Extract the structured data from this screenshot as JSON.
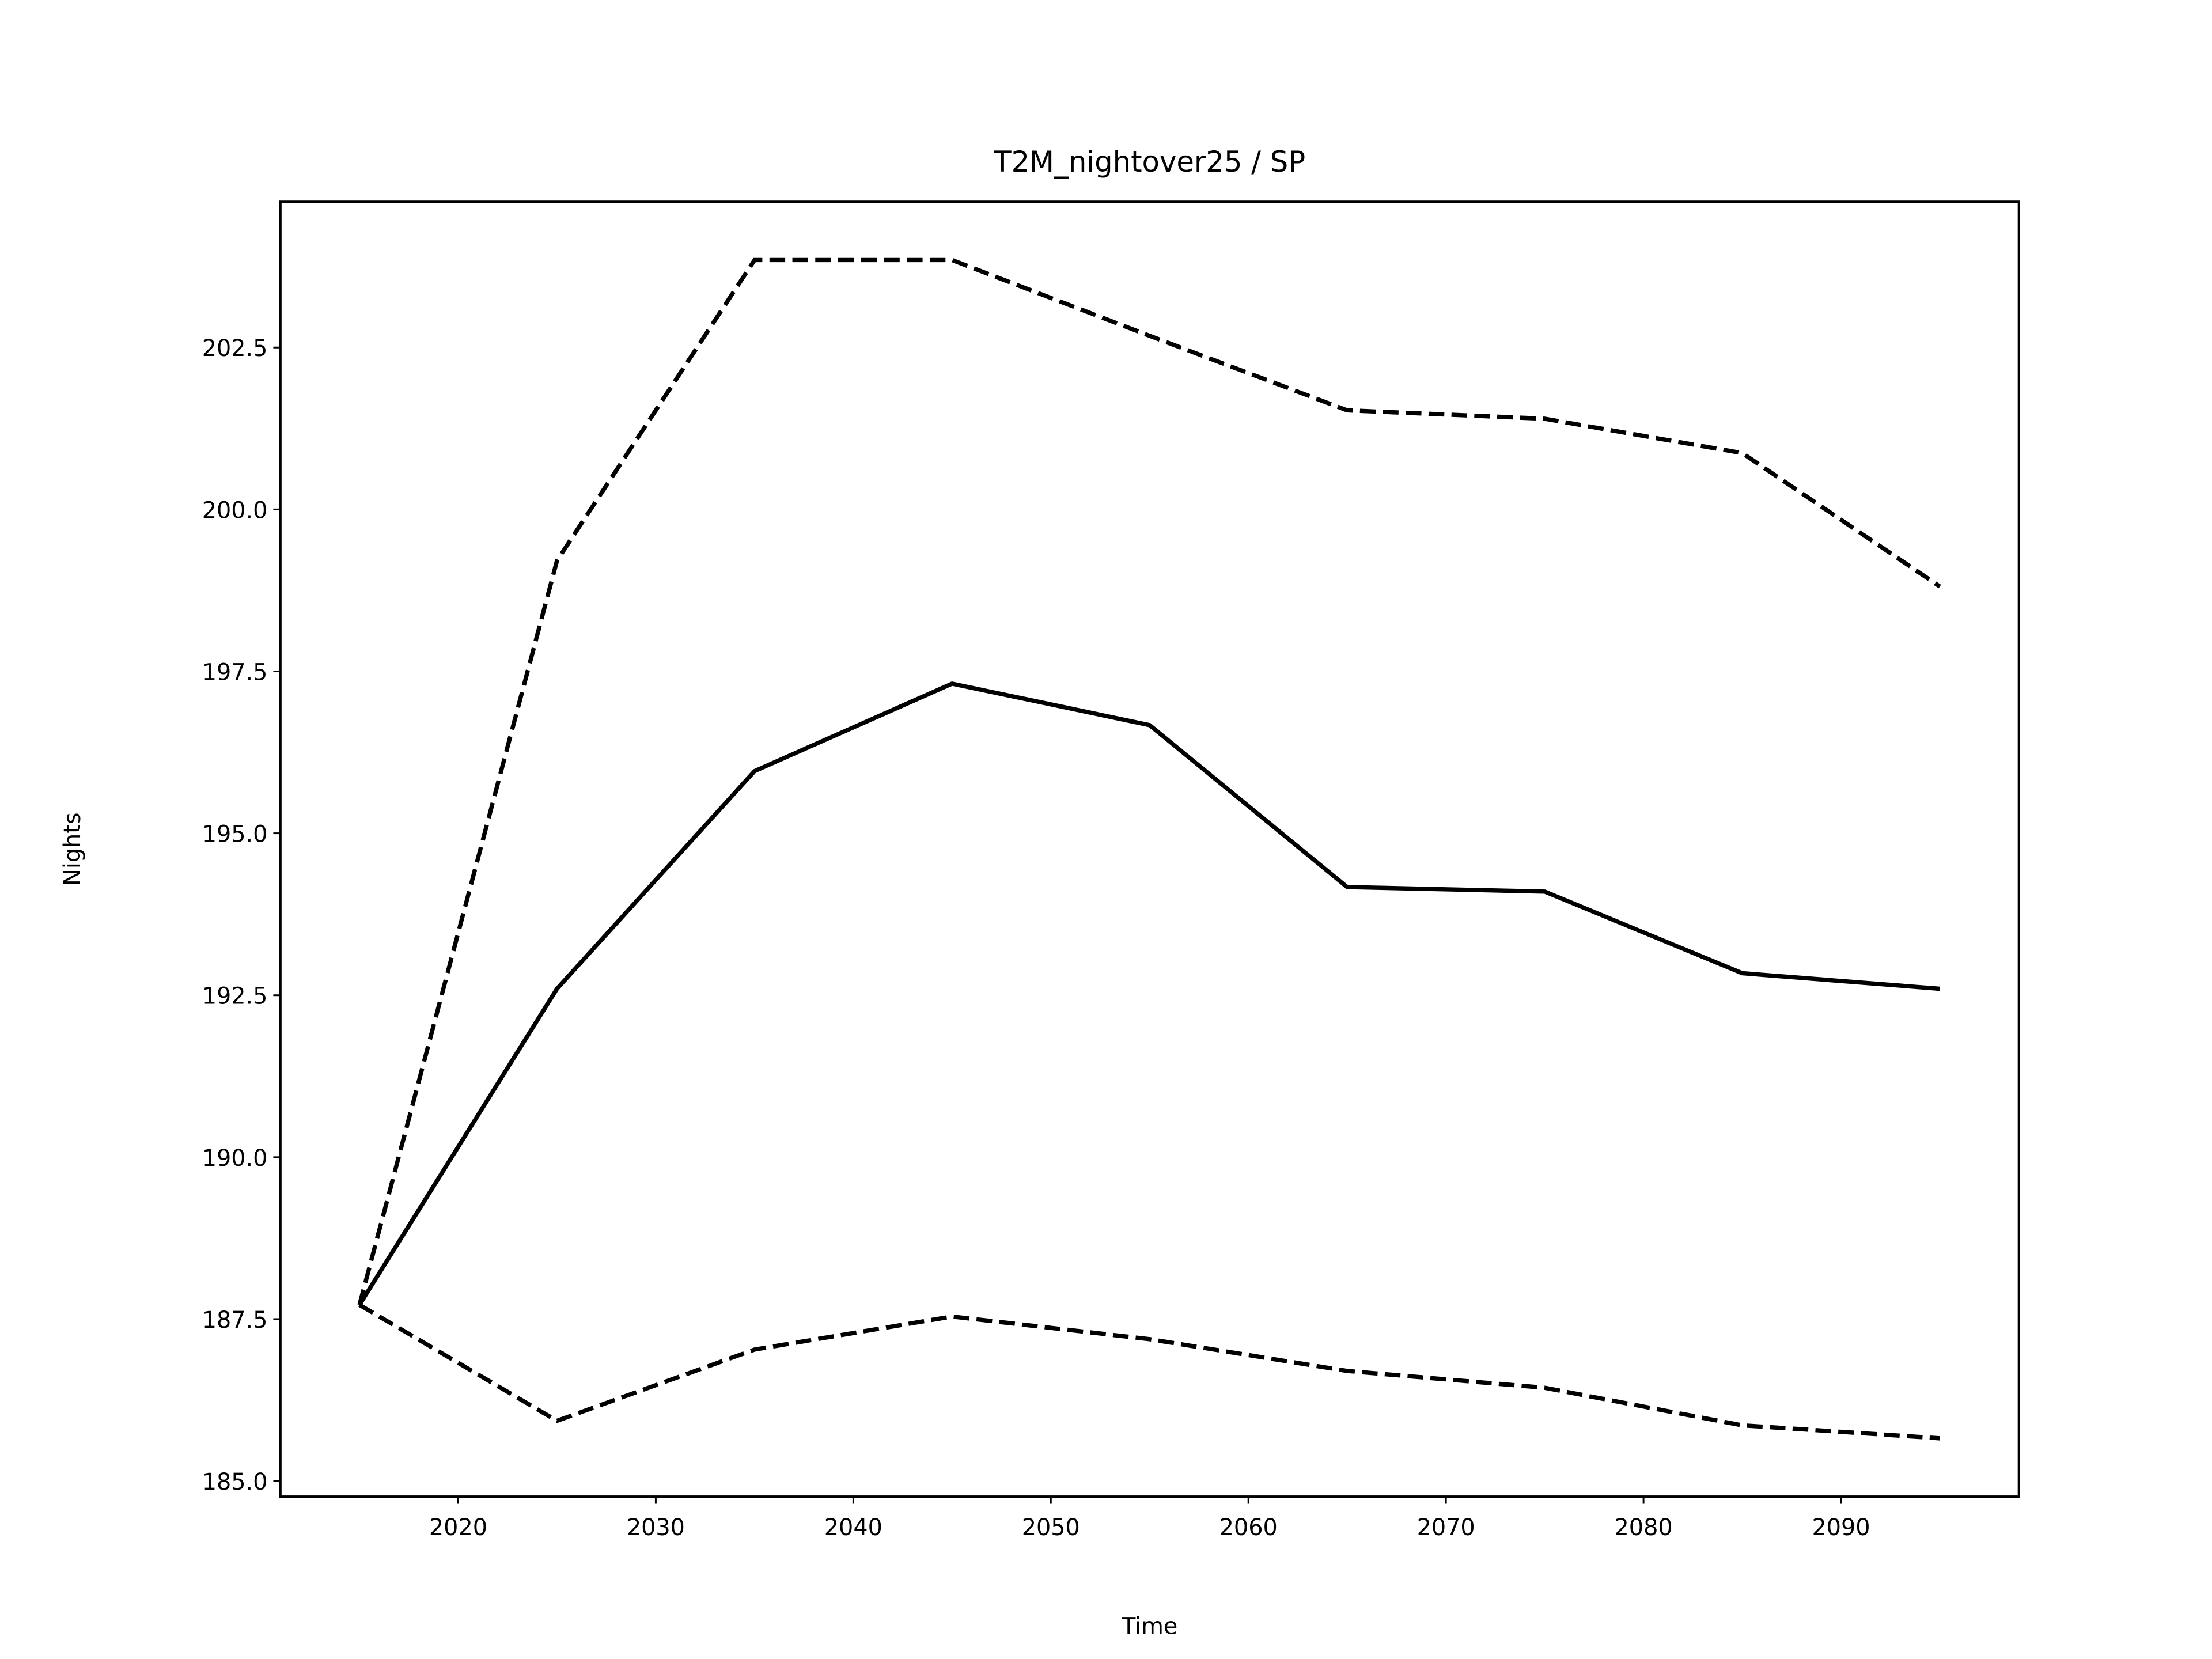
{
  "chart_data": {
    "type": "line",
    "title": "T2M_nightover25 / SP",
    "x_label": "Time",
    "y_label": "Nights",
    "x": [
      2015,
      2025,
      2035,
      2045,
      2055,
      2065,
      2075,
      2085,
      2095
    ],
    "series": [
      {
        "color": "#000000",
        "dashed": false,
        "values": [
          187.72,
          192.6,
          195.96,
          197.31,
          196.67,
          194.17,
          194.1,
          192.84,
          192.6
        ]
      },
      {
        "color": "#000000",
        "dashed": true,
        "values": [
          187.72,
          199.21,
          203.85,
          203.85,
          202.68,
          201.53,
          201.4,
          200.87,
          198.81
        ]
      },
      {
        "color": "#000000",
        "dashed": true,
        "values": [
          187.72,
          185.93,
          187.03,
          187.54,
          187.19,
          186.7,
          186.44,
          185.86,
          185.66
        ]
      }
    ],
    "xlim": [
      2011,
      2099
    ],
    "xticks": [
      2020,
      2030,
      2040,
      2050,
      2060,
      2070,
      2080,
      2090
    ],
    "ylim": [
      184.76,
      204.75
    ],
    "yticks": [
      {
        "value": 185,
        "label": "185.0"
      },
      187.5,
      {
        "value": 190,
        "label": "190.0"
      },
      192.5,
      {
        "value": 195,
        "label": "195.0"
      },
      197.5,
      {
        "value": 200,
        "label": "200.0"
      },
      202.5
    ],
    "grid": false
  }
}
